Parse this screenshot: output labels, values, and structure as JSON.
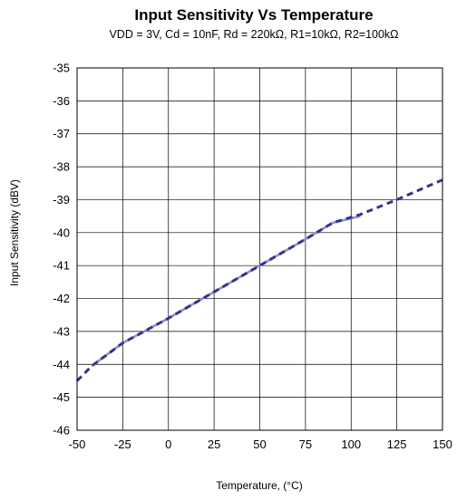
{
  "chart_data": {
    "type": "line",
    "title": "Input Sensitivity Vs Temperature",
    "subtitle": "VDD = 3V, Cd = 10nF, Rd = 220kΩ, R1=10kΩ, R2=100kΩ",
    "xlabel": "Temperature,  (°C)",
    "ylabel": "Input Sensitivity (dBV)",
    "xlim": [
      -50,
      150
    ],
    "ylim": [
      -46,
      -35
    ],
    "xticks": [
      -50,
      -25,
      0,
      25,
      50,
      75,
      100,
      125,
      150
    ],
    "yticks": [
      -35,
      -36,
      -37,
      -38,
      -39,
      -40,
      -41,
      -42,
      -43,
      -44,
      -45,
      -46
    ],
    "grid": true,
    "legend": "none",
    "series": [
      {
        "style": "solid",
        "color": "#8a8fc8",
        "x": [
          -42,
          -25,
          0,
          25,
          50,
          75,
          90,
          105
        ],
        "y": [
          -44.05,
          -43.35,
          -42.6,
          -41.8,
          -41.0,
          -40.2,
          -39.7,
          -39.5
        ]
      },
      {
        "style": "dashed",
        "color": "#34348a",
        "x": [
          -50,
          -42,
          -25,
          0,
          25,
          50,
          75,
          90,
          105,
          125,
          150
        ],
        "y": [
          -44.5,
          -44.05,
          -43.35,
          -42.6,
          -41.8,
          -41.0,
          -40.2,
          -39.7,
          -39.45,
          -39.0,
          -38.4
        ]
      }
    ]
  }
}
